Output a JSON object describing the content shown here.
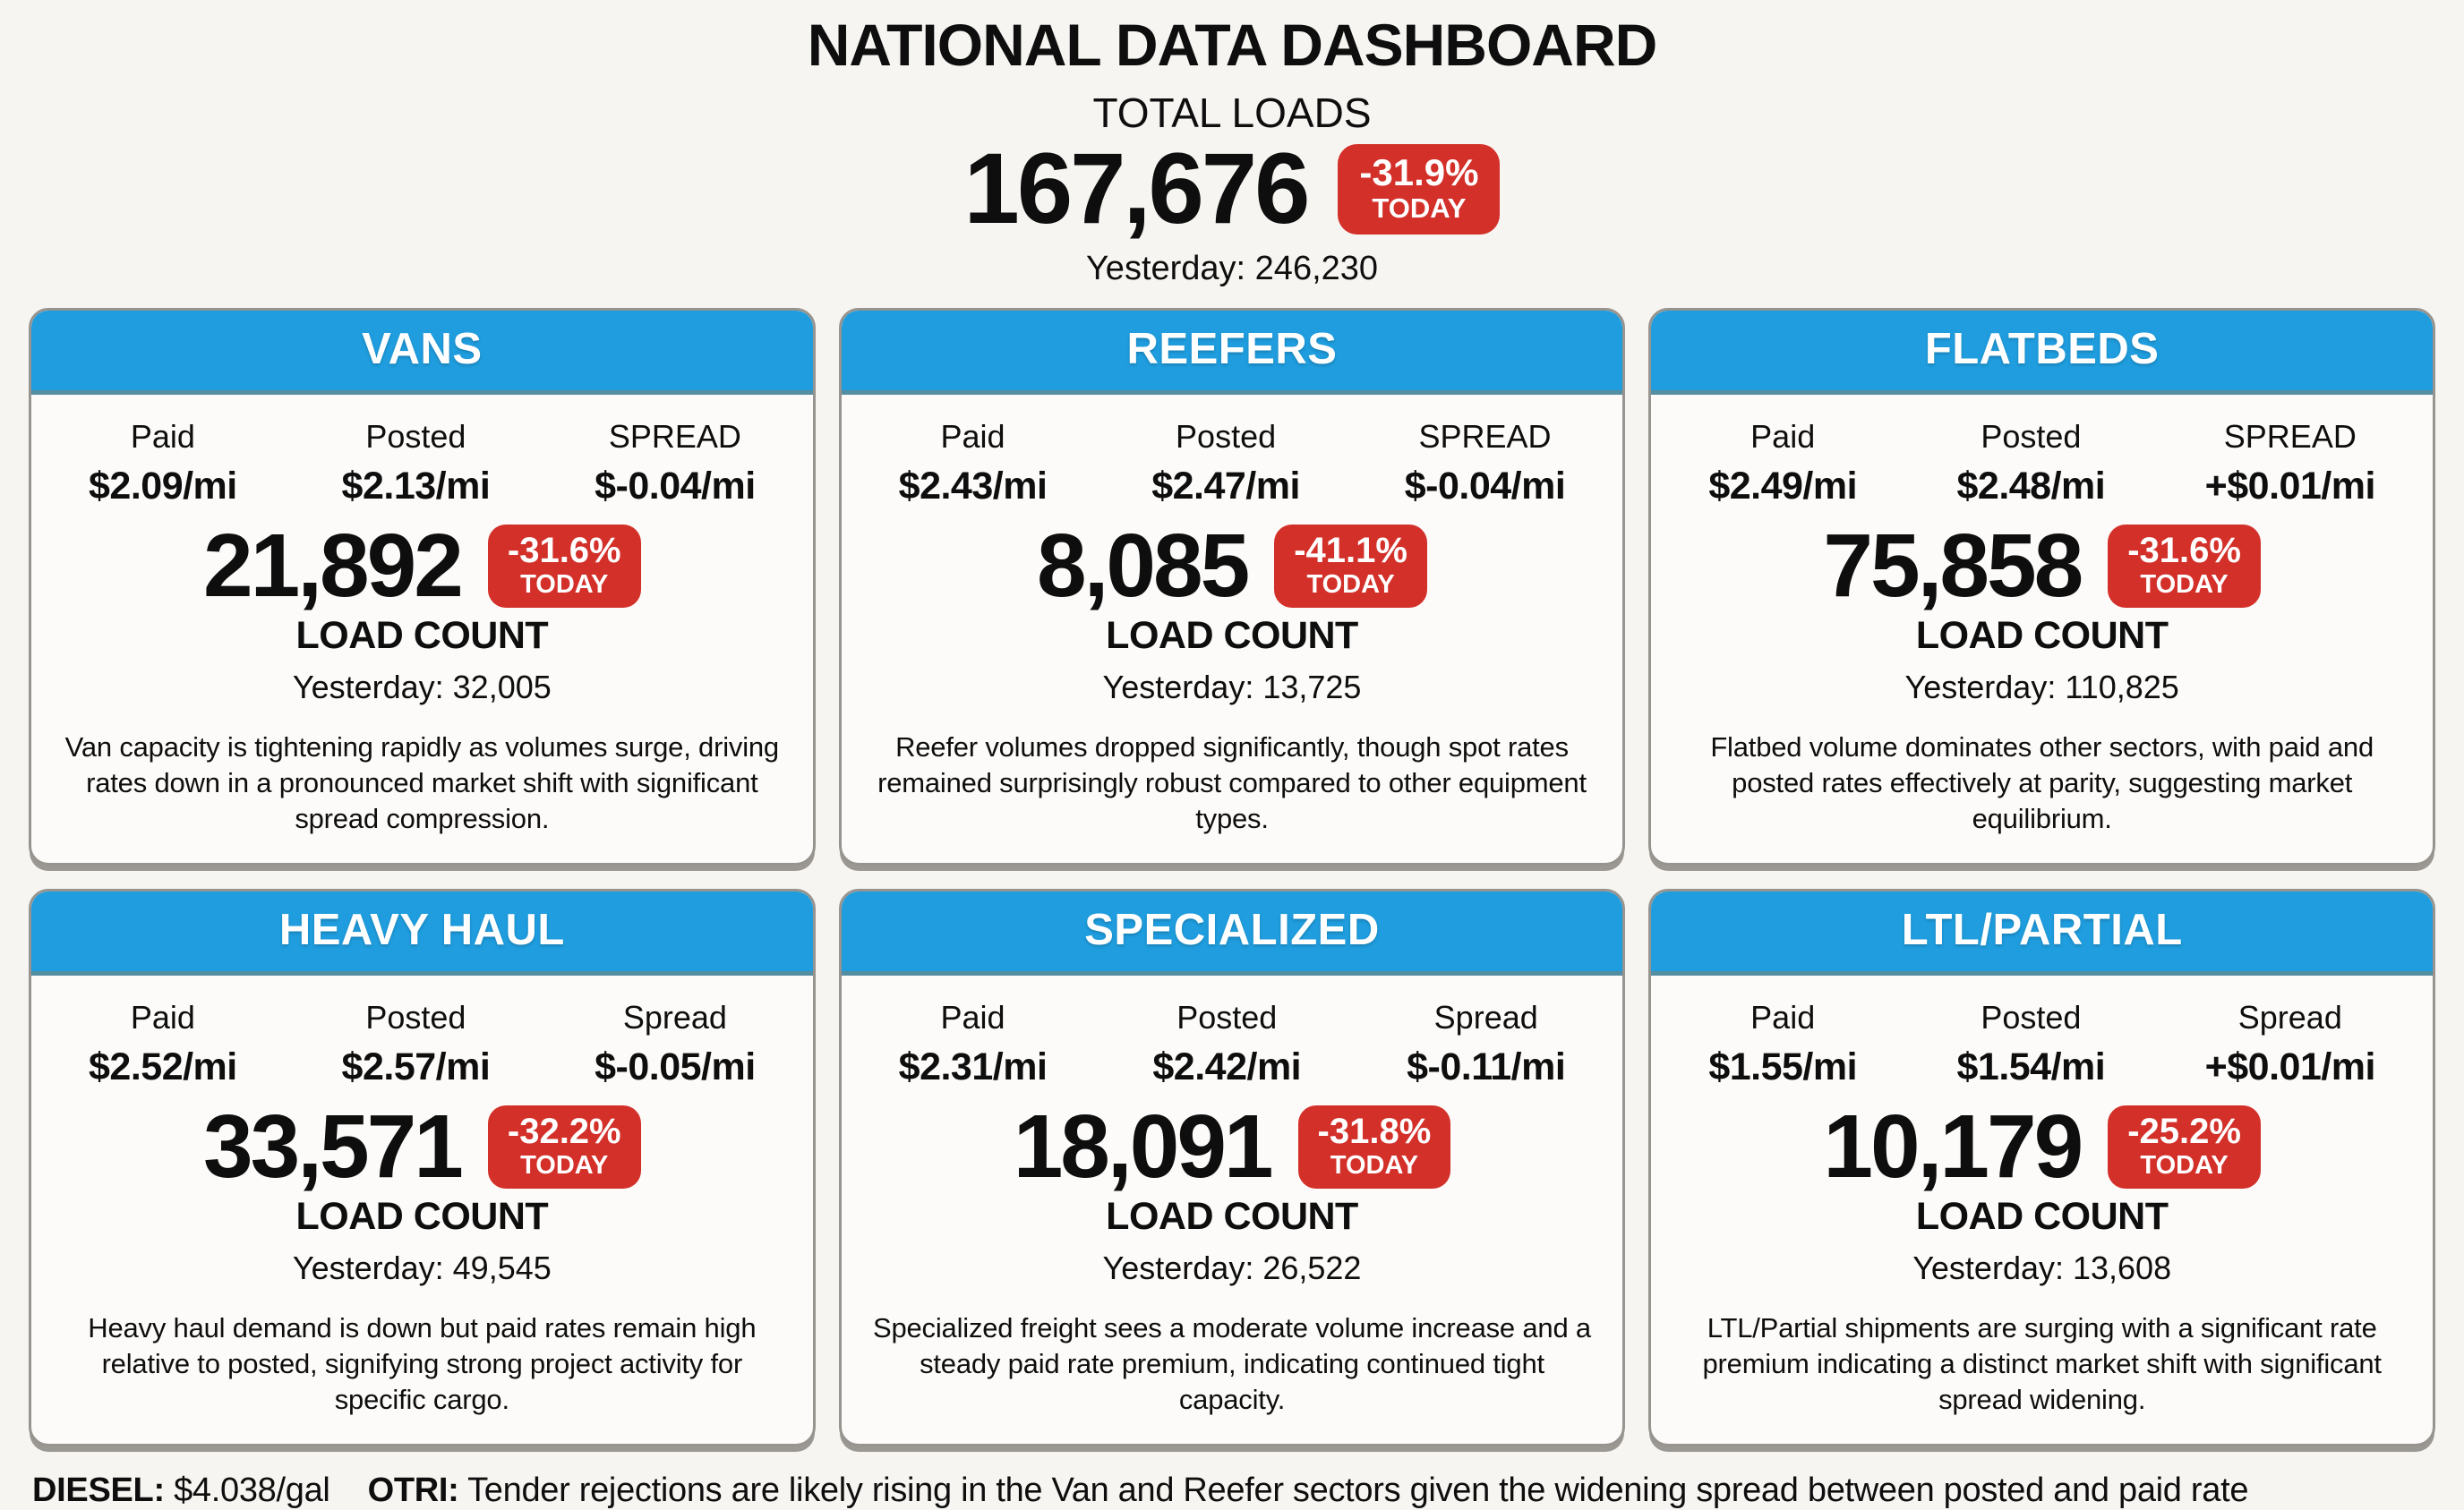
{
  "header": {
    "title": "NATIONAL DATA DASHBOARD",
    "total_loads_label": "TOTAL LOADS",
    "total_loads_value": "167,676",
    "badge": {
      "percent": "-31.9%",
      "period": "TODAY"
    },
    "yesterday": "Yesterday: 246,230"
  },
  "cards": [
    {
      "title": "VANS",
      "stats": [
        {
          "label": "Paid",
          "value": "$2.09/mi"
        },
        {
          "label": "Posted",
          "value": "$2.13/mi"
        },
        {
          "label": "SPREAD",
          "value": "$-0.04/mi"
        }
      ],
      "count": "21,892",
      "badge": {
        "percent": "-31.6%",
        "period": "TODAY"
      },
      "count_label": "LOAD COUNT",
      "yesterday": "Yesterday: 32,005",
      "description": "Van capacity is tightening rapidly as volumes surge, driving rates down in a pronounced market shift with significant spread compression."
    },
    {
      "title": "REEFERS",
      "stats": [
        {
          "label": "Paid",
          "value": "$2.43/mi"
        },
        {
          "label": "Posted",
          "value": "$2.47/mi"
        },
        {
          "label": "SPREAD",
          "value": "$-0.04/mi"
        }
      ],
      "count": "8,085",
      "badge": {
        "percent": "-41.1%",
        "period": "TODAY"
      },
      "count_label": "LOAD COUNT",
      "yesterday": "Yesterday: 13,725",
      "description": "Reefer volumes dropped significantly, though spot rates remained surprisingly robust compared to other equipment types."
    },
    {
      "title": "FLATBEDS",
      "stats": [
        {
          "label": "Paid",
          "value": "$2.49/mi"
        },
        {
          "label": "Posted",
          "value": "$2.48/mi"
        },
        {
          "label": "SPREAD",
          "value": "+$0.01/mi"
        }
      ],
      "count": "75,858",
      "badge": {
        "percent": "-31.6%",
        "period": "TODAY"
      },
      "count_label": "LOAD COUNT",
      "yesterday": "Yesterday: 110,825",
      "description": "Flatbed volume dominates other sectors, with paid and posted rates effectively at parity, suggesting market equilibrium."
    },
    {
      "title": "HEAVY HAUL",
      "stats": [
        {
          "label": "Paid",
          "value": "$2.52/mi"
        },
        {
          "label": "Posted",
          "value": "$2.57/mi"
        },
        {
          "label": "Spread",
          "value": "$-0.05/mi"
        }
      ],
      "count": "33,571",
      "badge": {
        "percent": "-32.2%",
        "period": "TODAY"
      },
      "count_label": "LOAD COUNT",
      "yesterday": "Yesterday: 49,545",
      "description": "Heavy haul demand is down but paid rates remain high relative to posted, signifying strong project activity for specific cargo."
    },
    {
      "title": "SPECIALIZED",
      "stats": [
        {
          "label": "Paid",
          "value": "$2.31/mi"
        },
        {
          "label": "Posted",
          "value": "$2.42/mi"
        },
        {
          "label": "Spread",
          "value": "$-0.11/mi"
        }
      ],
      "count": "18,091",
      "badge": {
        "percent": "-31.8%",
        "period": "TODAY"
      },
      "count_label": "LOAD COUNT",
      "yesterday": "Yesterday: 26,522",
      "description": "Specialized freight sees a moderate volume increase and a steady paid rate premium, indicating continued tight capacity."
    },
    {
      "title": "LTL/PARTIAL",
      "stats": [
        {
          "label": "Paid",
          "value": "$1.55/mi"
        },
        {
          "label": "Posted",
          "value": "$1.54/mi"
        },
        {
          "label": "Spread",
          "value": "+$0.01/mi"
        }
      ],
      "count": "10,179",
      "badge": {
        "percent": "-25.2%",
        "period": "TODAY"
      },
      "count_label": "LOAD COUNT",
      "yesterday": "Yesterday: 13,608",
      "description": "LTL/Partial shipments are surging with a significant rate premium indicating a distinct market shift with significant spread widening."
    }
  ],
  "footer": {
    "diesel_label": "DIESEL:",
    "diesel_value": "$4.038/gal",
    "otri_label": "OTRI:",
    "otri_text": "Tender rejections are likely rising in the Van and Reefer sectors given the widening spread between posted and paid rate"
  },
  "colors": {
    "header_blue": "#1f9dde",
    "badge_red": "#d3302a",
    "page_background": "#f7f5f1",
    "card_border_gray": "#97948f"
  },
  "chart_data": {
    "type": "table",
    "title": "NATIONAL DATA DASHBOARD",
    "total_loads": {
      "today": 167676,
      "yesterday": 246230,
      "change_pct_today": -31.9
    },
    "columns": [
      "sector",
      "paid_$_per_mi",
      "posted_$_per_mi",
      "spread_$_per_mi",
      "load_count_today",
      "load_count_yesterday",
      "change_pct_today"
    ],
    "rows": [
      [
        "VANS",
        2.09,
        2.13,
        -0.04,
        21892,
        32005,
        -31.6
      ],
      [
        "REEFERS",
        2.43,
        2.47,
        -0.04,
        8085,
        13725,
        -41.1
      ],
      [
        "FLATBEDS",
        2.49,
        2.48,
        0.01,
        75858,
        110825,
        -31.6
      ],
      [
        "HEAVY HAUL",
        2.52,
        2.57,
        -0.05,
        33571,
        49545,
        -32.2
      ],
      [
        "SPECIALIZED",
        2.31,
        2.42,
        -0.11,
        18091,
        26522,
        -31.8
      ],
      [
        "LTL/PARTIAL",
        1.55,
        1.54,
        0.01,
        10179,
        13608,
        -25.2
      ]
    ],
    "diesel_price_per_gal": 4.038
  }
}
